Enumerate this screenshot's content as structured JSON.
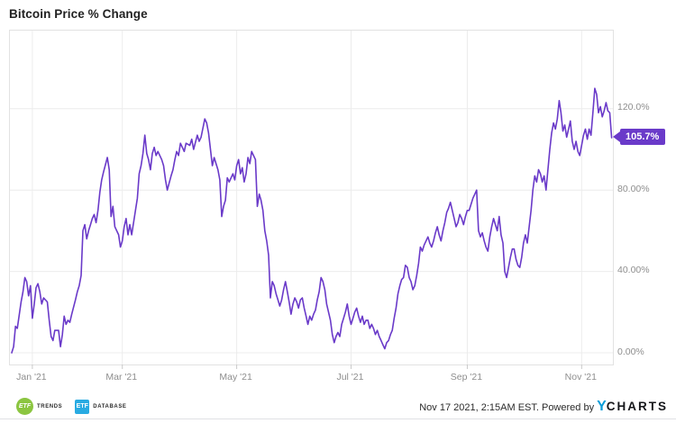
{
  "title": "Bitcoin Price % Change",
  "last_value_label": "105.7%",
  "colors": {
    "accent": "#6a3ac9",
    "grid": "#ececec",
    "plot_border": "#e2e2e2",
    "tick": "#c9c9c9",
    "axis_text": "#8e8e8e",
    "title_text": "#222222",
    "footer_text": "#2b2b2b",
    "etf_trends_green": "#8bc540",
    "etf_database_blue": "#29abe2",
    "ycharts_blue": "#0a9dd8",
    "ycharts_dark": "#16171b",
    "background": "#ffffff"
  },
  "y_axis": {
    "ticks": [
      {
        "label": "0.00%",
        "value": 0
      },
      {
        "label": "40.00%",
        "value": 40
      },
      {
        "label": "80.00%",
        "value": 80
      },
      {
        "label": "120.0%",
        "value": 120
      }
    ]
  },
  "x_axis": {
    "ticks": [
      {
        "label": "Jan '21",
        "day": 11
      },
      {
        "label": "Mar '21",
        "day": 59
      },
      {
        "label": "May '21",
        "day": 120
      },
      {
        "label": "Jul '21",
        "day": 181
      },
      {
        "label": "Sep '21",
        "day": 243
      },
      {
        "label": "Nov '21",
        "day": 304
      }
    ]
  },
  "footer": {
    "logos": [
      {
        "badge": "ETF",
        "name": "TRENDS"
      },
      {
        "badge": "ETF",
        "name": "DATABASE"
      }
    ],
    "attribution": "Nov 17 2021, 2:15AM EST. Powered by",
    "ycharts_y": "Y",
    "ycharts_rest": "CHARTS"
  },
  "chart_data": {
    "type": "line",
    "title": "Bitcoin Price % Change",
    "series_name": "Bitcoin Price % Change",
    "x_unit": "days since Jan 1 2021",
    "x_tick_labels": [
      "Jan '21",
      "Mar '21",
      "May '21",
      "Jul '21",
      "Sep '21",
      "Nov '21"
    ],
    "y_tick_labels": [
      "0.00%",
      "40.00%",
      "80.00%",
      "120.0%"
    ],
    "x_range_days": [
      0,
      320
    ],
    "y_visible_range_pct": [
      -5.8,
      158
    ],
    "grid": true,
    "legend": false,
    "last_value_pct": 105.7,
    "points": [
      [
        0,
        0
      ],
      [
        1,
        3
      ],
      [
        2,
        13
      ],
      [
        3,
        12
      ],
      [
        5,
        25
      ],
      [
        6,
        30
      ],
      [
        7,
        37
      ],
      [
        8,
        35
      ],
      [
        9,
        28
      ],
      [
        10,
        33
      ],
      [
        11,
        17
      ],
      [
        12,
        24
      ],
      [
        13,
        32
      ],
      [
        14,
        34
      ],
      [
        15,
        30
      ],
      [
        16,
        24
      ],
      [
        17,
        27
      ],
      [
        19,
        25
      ],
      [
        20,
        16
      ],
      [
        21,
        8
      ],
      [
        22,
        6
      ],
      [
        23,
        11
      ],
      [
        25,
        11
      ],
      [
        26,
        3
      ],
      [
        27,
        9
      ],
      [
        28,
        18
      ],
      [
        29,
        14
      ],
      [
        30,
        16
      ],
      [
        31,
        15
      ],
      [
        32,
        19
      ],
      [
        34,
        26
      ],
      [
        35,
        30
      ],
      [
        36,
        33
      ],
      [
        37,
        38
      ],
      [
        38,
        60
      ],
      [
        39,
        63
      ],
      [
        40,
        56
      ],
      [
        41,
        60
      ],
      [
        42,
        63
      ],
      [
        43,
        66
      ],
      [
        44,
        68
      ],
      [
        45,
        64
      ],
      [
        46,
        70
      ],
      [
        47,
        79
      ],
      [
        48,
        85
      ],
      [
        49,
        89
      ],
      [
        51,
        96
      ],
      [
        52,
        90
      ],
      [
        53,
        67
      ],
      [
        54,
        72
      ],
      [
        55,
        62
      ],
      [
        57,
        58
      ],
      [
        58,
        52
      ],
      [
        59,
        55
      ],
      [
        60,
        62
      ],
      [
        61,
        66
      ],
      [
        62,
        58
      ],
      [
        63,
        63
      ],
      [
        64,
        58
      ],
      [
        66,
        70
      ],
      [
        67,
        76
      ],
      [
        68,
        88
      ],
      [
        69,
        92
      ],
      [
        70,
        98
      ],
      [
        71,
        107
      ],
      [
        72,
        98
      ],
      [
        73,
        95
      ],
      [
        74,
        90
      ],
      [
        75,
        98
      ],
      [
        76,
        101
      ],
      [
        77,
        97
      ],
      [
        78,
        99
      ],
      [
        80,
        95
      ],
      [
        81,
        92
      ],
      [
        82,
        85
      ],
      [
        83,
        80
      ],
      [
        85,
        87
      ],
      [
        86,
        90
      ],
      [
        87,
        95
      ],
      [
        88,
        99
      ],
      [
        89,
        97
      ],
      [
        90,
        103
      ],
      [
        91,
        101
      ],
      [
        92,
        99
      ],
      [
        93,
        103
      ],
      [
        95,
        102
      ],
      [
        96,
        105
      ],
      [
        97,
        100
      ],
      [
        99,
        107
      ],
      [
        100,
        104
      ],
      [
        101,
        106
      ],
      [
        103,
        115
      ],
      [
        104,
        113
      ],
      [
        105,
        108
      ],
      [
        107,
        92
      ],
      [
        108,
        96
      ],
      [
        110,
        90
      ],
      [
        111,
        85
      ],
      [
        112,
        67
      ],
      [
        113,
        72
      ],
      [
        114,
        75
      ],
      [
        115,
        86
      ],
      [
        116,
        84
      ],
      [
        118,
        88
      ],
      [
        119,
        85
      ],
      [
        120,
        92
      ],
      [
        121,
        95
      ],
      [
        122,
        88
      ],
      [
        123,
        91
      ],
      [
        124,
        84
      ],
      [
        125,
        88
      ],
      [
        126,
        96
      ],
      [
        127,
        93
      ],
      [
        128,
        99
      ],
      [
        129,
        97
      ],
      [
        130,
        95
      ],
      [
        131,
        72
      ],
      [
        132,
        78
      ],
      [
        133,
        75
      ],
      [
        134,
        70
      ],
      [
        135,
        60
      ],
      [
        136,
        55
      ],
      [
        137,
        48
      ],
      [
        138,
        27
      ],
      [
        139,
        35
      ],
      [
        140,
        33
      ],
      [
        141,
        29
      ],
      [
        142,
        26
      ],
      [
        143,
        23
      ],
      [
        144,
        26
      ],
      [
        145,
        31
      ],
      [
        146,
        35
      ],
      [
        147,
        30
      ],
      [
        148,
        25
      ],
      [
        149,
        19
      ],
      [
        150,
        24
      ],
      [
        151,
        27
      ],
      [
        152,
        25
      ],
      [
        153,
        22
      ],
      [
        154,
        26
      ],
      [
        155,
        27
      ],
      [
        156,
        22
      ],
      [
        157,
        18
      ],
      [
        158,
        14
      ],
      [
        159,
        18
      ],
      [
        160,
        16
      ],
      [
        161,
        19
      ],
      [
        162,
        21
      ],
      [
        163,
        26
      ],
      [
        164,
        30
      ],
      [
        165,
        37
      ],
      [
        166,
        35
      ],
      [
        167,
        31
      ],
      [
        168,
        24
      ],
      [
        169,
        20
      ],
      [
        170,
        16
      ],
      [
        171,
        9
      ],
      [
        172,
        5
      ],
      [
        173,
        8
      ],
      [
        174,
        10
      ],
      [
        175,
        8
      ],
      [
        176,
        14
      ],
      [
        177,
        17
      ],
      [
        178,
        20
      ],
      [
        179,
        24
      ],
      [
        180,
        18
      ],
      [
        181,
        14
      ],
      [
        182,
        17
      ],
      [
        183,
        20
      ],
      [
        184,
        22
      ],
      [
        185,
        18
      ],
      [
        186,
        15
      ],
      [
        187,
        18
      ],
      [
        188,
        14
      ],
      [
        189,
        16
      ],
      [
        190,
        16
      ],
      [
        191,
        12
      ],
      [
        192,
        14
      ],
      [
        193,
        12
      ],
      [
        194,
        9
      ],
      [
        195,
        11
      ],
      [
        196,
        8
      ],
      [
        197,
        6
      ],
      [
        198,
        4
      ],
      [
        199,
        2
      ],
      [
        200,
        5
      ],
      [
        201,
        6
      ],
      [
        202,
        9
      ],
      [
        203,
        11
      ],
      [
        204,
        17
      ],
      [
        205,
        22
      ],
      [
        206,
        29
      ],
      [
        207,
        33
      ],
      [
        208,
        36
      ],
      [
        209,
        37
      ],
      [
        210,
        43
      ],
      [
        211,
        42
      ],
      [
        212,
        37
      ],
      [
        213,
        35
      ],
      [
        214,
        31
      ],
      [
        215,
        33
      ],
      [
        216,
        38
      ],
      [
        217,
        44
      ],
      [
        218,
        52
      ],
      [
        219,
        50
      ],
      [
        220,
        53
      ],
      [
        221,
        55
      ],
      [
        222,
        57
      ],
      [
        223,
        54
      ],
      [
        224,
        52
      ],
      [
        225,
        55
      ],
      [
        226,
        59
      ],
      [
        227,
        62
      ],
      [
        228,
        58
      ],
      [
        229,
        55
      ],
      [
        230,
        60
      ],
      [
        231,
        64
      ],
      [
        232,
        69
      ],
      [
        233,
        71
      ],
      [
        234,
        74
      ],
      [
        235,
        70
      ],
      [
        236,
        66
      ],
      [
        237,
        62
      ],
      [
        238,
        64
      ],
      [
        239,
        68
      ],
      [
        240,
        66
      ],
      [
        241,
        63
      ],
      [
        242,
        67
      ],
      [
        243,
        70
      ],
      [
        244,
        70
      ],
      [
        245,
        73
      ],
      [
        246,
        76
      ],
      [
        247,
        78
      ],
      [
        248,
        80
      ],
      [
        249,
        60
      ],
      [
        250,
        57
      ],
      [
        251,
        59
      ],
      [
        252,
        55
      ],
      [
        253,
        52
      ],
      [
        254,
        50
      ],
      [
        255,
        57
      ],
      [
        256,
        62
      ],
      [
        257,
        66
      ],
      [
        258,
        63
      ],
      [
        259,
        60
      ],
      [
        260,
        67
      ],
      [
        261,
        58
      ],
      [
        262,
        54
      ],
      [
        263,
        40
      ],
      [
        264,
        37
      ],
      [
        265,
        42
      ],
      [
        266,
        47
      ],
      [
        267,
        51
      ],
      [
        268,
        51
      ],
      [
        269,
        46
      ],
      [
        270,
        43
      ],
      [
        271,
        42
      ],
      [
        272,
        47
      ],
      [
        273,
        54
      ],
      [
        274,
        58
      ],
      [
        275,
        54
      ],
      [
        276,
        62
      ],
      [
        277,
        70
      ],
      [
        278,
        80
      ],
      [
        279,
        87
      ],
      [
        280,
        84
      ],
      [
        281,
        90
      ],
      [
        282,
        88
      ],
      [
        283,
        84
      ],
      [
        284,
        87
      ],
      [
        285,
        80
      ],
      [
        286,
        90
      ],
      [
        287,
        100
      ],
      [
        288,
        108
      ],
      [
        289,
        113
      ],
      [
        290,
        110
      ],
      [
        291,
        115
      ],
      [
        292,
        124
      ],
      [
        293,
        118
      ],
      [
        294,
        109
      ],
      [
        295,
        112
      ],
      [
        296,
        106
      ],
      [
        297,
        110
      ],
      [
        298,
        114
      ],
      [
        299,
        104
      ],
      [
        300,
        100
      ],
      [
        301,
        104
      ],
      [
        302,
        99
      ],
      [
        303,
        97
      ],
      [
        304,
        102
      ],
      [
        305,
        107
      ],
      [
        306,
        110
      ],
      [
        307,
        105
      ],
      [
        308,
        110
      ],
      [
        309,
        107
      ],
      [
        310,
        118
      ],
      [
        311,
        130
      ],
      [
        312,
        127
      ],
      [
        313,
        118
      ],
      [
        314,
        121
      ],
      [
        315,
        116
      ],
      [
        316,
        119
      ],
      [
        317,
        123
      ],
      [
        318,
        119
      ],
      [
        319,
        118
      ],
      [
        320,
        105.7
      ]
    ]
  }
}
